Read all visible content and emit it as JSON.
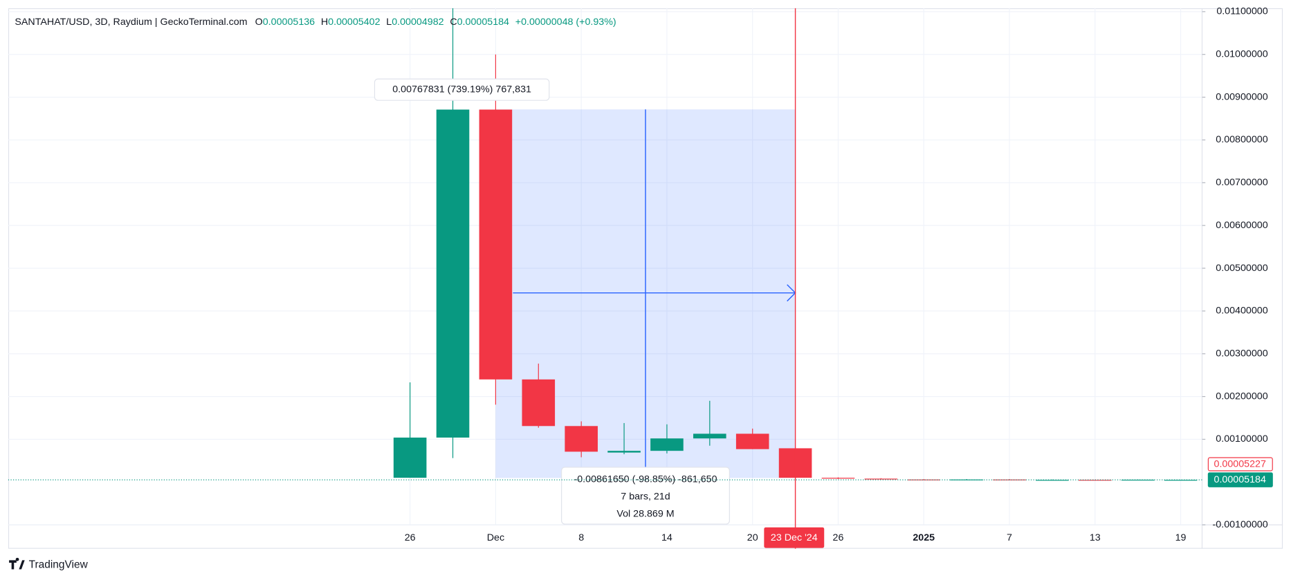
{
  "chart_data": {
    "type": "candlestick",
    "title": "SANTAHAT/USD, 3D, Raydium | GeckoTerminal.com",
    "ohlc_labels": [
      "O",
      "H",
      "L",
      "C"
    ],
    "change": "+0.00000048 (+0.93%)",
    "categories": [
      "26",
      null,
      "Dec",
      null,
      "8",
      null,
      "14",
      null,
      "20",
      null,
      "26",
      null,
      "2025",
      null,
      "7",
      null,
      "13",
      null,
      "19"
    ],
    "open": [
      0.0001,
      0.00104,
      0.00871,
      0.0024,
      0.00131,
      0.00069,
      0.00073,
      0.00102,
      0.00113,
      0.00079,
      0.0001,
      8e-05,
      6e-05,
      5e-05,
      6e-05,
      5e-05,
      5.2e-05,
      5e-05,
      5.136e-05
    ],
    "high": [
      0.00233,
      0.01108,
      0.01,
      0.00277,
      0.00142,
      0.00138,
      0.00135,
      0.0019,
      0.00125,
      0.00079,
      0.00011,
      9e-05,
      7e-05,
      7e-05,
      7e-05,
      6e-05,
      5.5e-05,
      6e-05,
      5.402e-05
    ],
    "low": [
      0.0001,
      0.00056,
      0.00181,
      0.00127,
      0.00058,
      0.00065,
      0.00067,
      0.00085,
      0.00077,
      9e-05,
      7e-05,
      6e-05,
      5e-05,
      5e-05,
      5e-05,
      4.8e-05,
      4.9e-05,
      4.9e-05,
      4.982e-05
    ],
    "close": [
      0.00104,
      0.00871,
      0.0024,
      0.00131,
      0.00071,
      0.00073,
      0.00102,
      0.00113,
      0.00077,
      0.0001,
      8e-05,
      6e-05,
      5e-05,
      6e-05,
      5e-05,
      5.1e-05,
      5e-05,
      5.5e-05,
      5.184e-05
    ],
    "up_color": "#089981",
    "down_color": "#f23645",
    "ylim": [
      -0.00154,
      0.01108
    ],
    "yticks": [
      {
        "value": 0.011,
        "label": "0.01100000"
      },
      {
        "value": 0.01,
        "label": "0.01000000"
      },
      {
        "value": 0.009,
        "label": "0.00900000"
      },
      {
        "value": 0.008,
        "label": "0.00800000"
      },
      {
        "value": 0.007,
        "label": "0.00700000"
      },
      {
        "value": 0.006,
        "label": "0.00600000"
      },
      {
        "value": 0.005,
        "label": "0.00500000"
      },
      {
        "value": 0.004,
        "label": "0.00400000"
      },
      {
        "value": 0.003,
        "label": "0.00300000"
      },
      {
        "value": 0.002,
        "label": "0.00200000"
      },
      {
        "value": 0.001,
        "label": "0.00100000"
      },
      {
        "value": -0.001,
        "label": "-0.00100000"
      }
    ],
    "grid": true,
    "marker_price": 5.227e-05,
    "crosshair_label": "23 Dec '24",
    "measure_top": "0.00767831 (739.19%) 767,831",
    "measure_bottom": [
      "-0.00861650 (-98.85%) -861,650",
      "7 bars, 21d",
      "Vol 28.869 M"
    ],
    "brand": "TradingView"
  }
}
